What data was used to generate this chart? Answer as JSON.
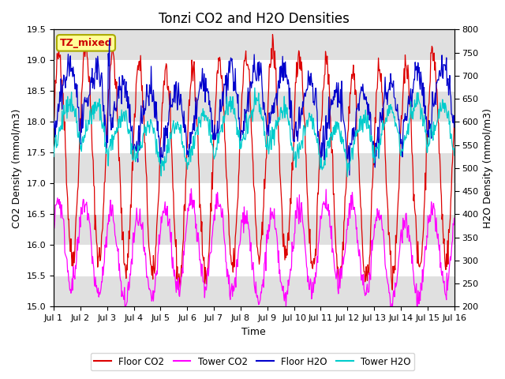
{
  "title": "Tonzi CO2 and H2O Densities",
  "xlabel": "Time",
  "ylabel_left": "CO2 Density (mmol/m3)",
  "ylabel_right": "H2O Density (mmol/m3)",
  "co2_ylim": [
    15.0,
    19.5
  ],
  "h2o_ylim": [
    200,
    800
  ],
  "co2_yticks": [
    15.0,
    15.5,
    16.0,
    16.5,
    17.0,
    17.5,
    18.0,
    18.5,
    19.0,
    19.5
  ],
  "h2o_yticks": [
    200,
    250,
    300,
    350,
    400,
    450,
    500,
    550,
    600,
    650,
    700,
    750,
    800
  ],
  "xtick_labels": [
    "Jul 1",
    "Jul 2",
    "Jul 3",
    "Jul 4",
    "Jul 5",
    "Jul 6",
    "Jul 7",
    "Jul 8",
    "Jul 9",
    "Jul 10",
    "Jul 11",
    "Jul 12",
    "Jul 13",
    "Jul 14",
    "Jul 15",
    "Jul 16"
  ],
  "n_days": 15,
  "pts_per_day": 48,
  "annotation_text": "TZ_mixed",
  "annotation_color": "#cc0000",
  "annotation_bg": "#ffff99",
  "annotation_border": "#aaaa00",
  "floor_co2_color": "#dd0000",
  "tower_co2_color": "#ff00ff",
  "floor_h2o_color": "#0000cc",
  "tower_h2o_color": "#00cccc",
  "legend_labels": [
    "Floor CO2",
    "Tower CO2",
    "Floor H2O",
    "Tower H2O"
  ],
  "bg_band_color": "#e0e0e0",
  "title_fontsize": 12,
  "label_fontsize": 9,
  "tick_fontsize": 8,
  "linewidth": 0.9
}
